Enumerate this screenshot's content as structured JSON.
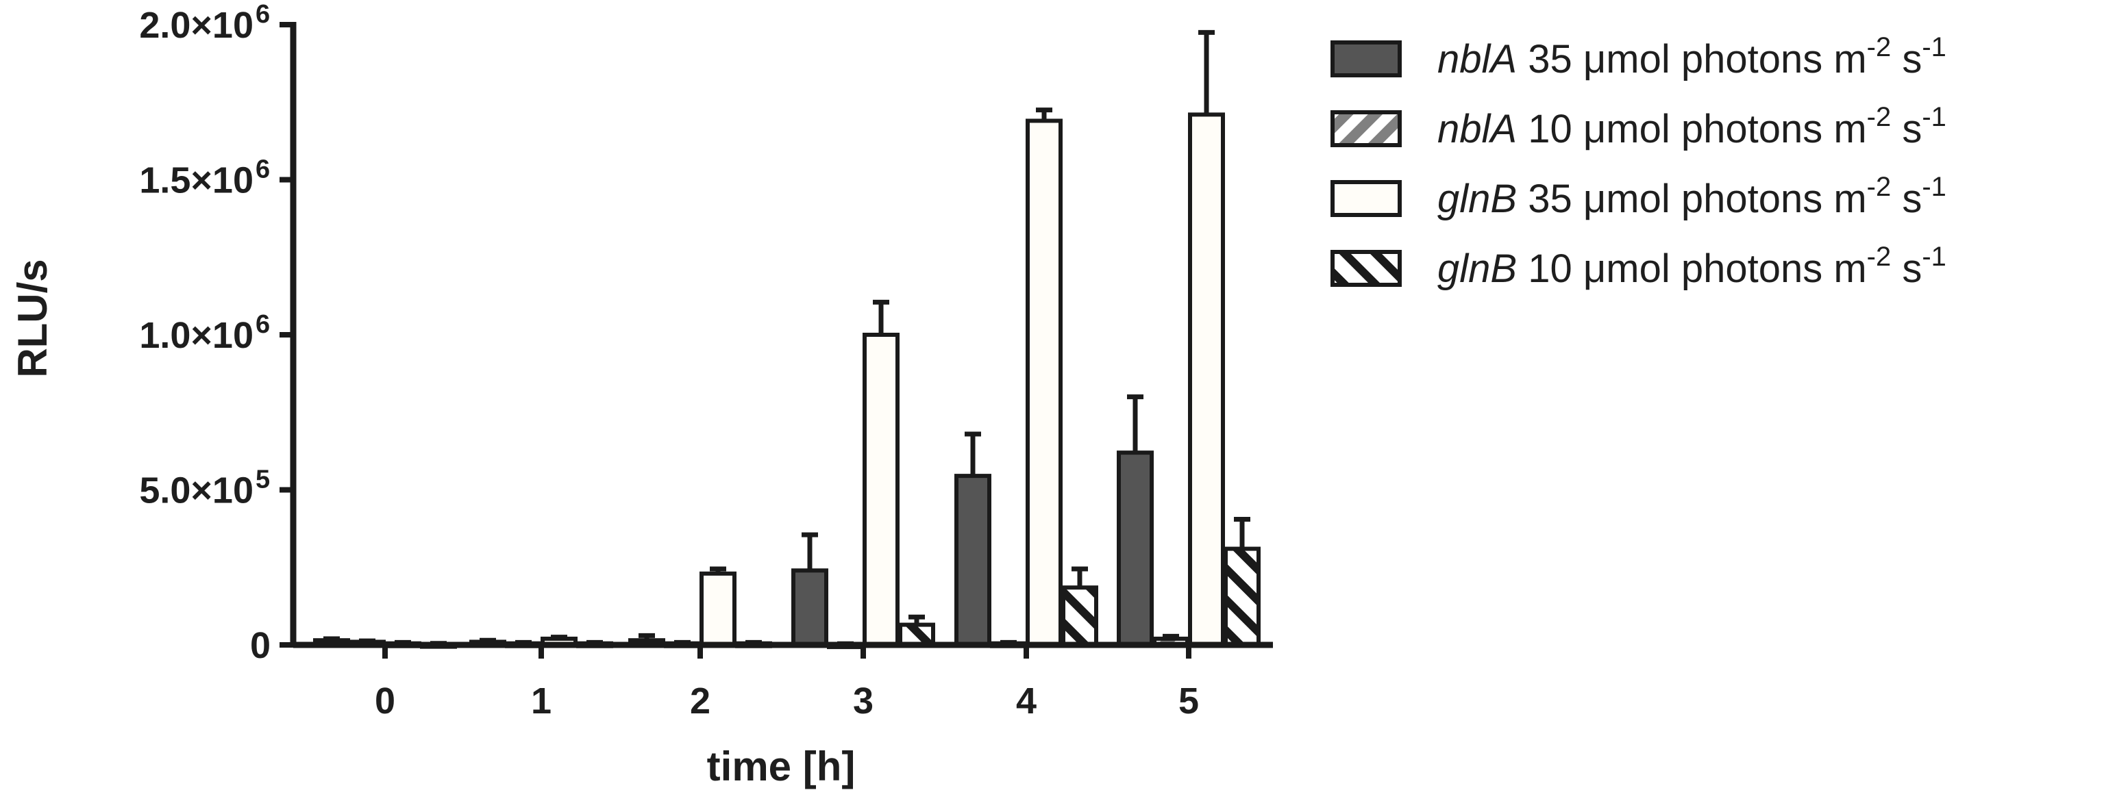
{
  "chart_data": {
    "type": "bar",
    "xlabel": "time [h]",
    "ylabel": "RLU/s",
    "categories": [
      "0",
      "1",
      "2",
      "3",
      "4",
      "5"
    ],
    "ylim": [
      0,
      2000000
    ],
    "yticks": [
      {
        "value": 0,
        "mantissa": "0",
        "exponent": ""
      },
      {
        "value": 500000,
        "mantissa": "5.0×10",
        "exponent": "5"
      },
      {
        "value": 1000000,
        "mantissa": "1.0×10",
        "exponent": "6"
      },
      {
        "value": 1500000,
        "mantissa": "1.5×10",
        "exponent": "6"
      },
      {
        "value": 2000000,
        "mantissa": "2.0×10",
        "exponent": "6"
      }
    ],
    "series": [
      {
        "gene": "nblA",
        "name_rest": " 35 μmol photons m",
        "sup1": "-2",
        "mid": " s",
        "sup2": "-1",
        "style": "solid-dark",
        "values": [
          15000,
          10000,
          15000,
          240000,
          545000,
          620000
        ],
        "errors": [
          5000,
          5000,
          15000,
          115000,
          135000,
          180000
        ]
      },
      {
        "gene": "nblA",
        "name_rest": " 10 μmol photons m",
        "sup1": "-2",
        "mid": " s",
        "sup2": "-1",
        "style": "hatch-gray",
        "values": [
          10000,
          5000,
          5000,
          2000,
          5000,
          20000
        ],
        "errors": [
          3000,
          3000,
          3000,
          2000,
          3000,
          8000
        ]
      },
      {
        "gene": "glnB",
        "name_rest": " 35 μmol photons m",
        "sup1": "-2",
        "mid": " s",
        "sup2": "-1",
        "style": "white",
        "values": [
          5000,
          20000,
          230000,
          1000000,
          1690000,
          1710000
        ],
        "errors": [
          3000,
          5000,
          15000,
          105000,
          35000,
          265000
        ]
      },
      {
        "gene": "glnB",
        "name_rest": " 10 μmol photons m",
        "sup1": "-2",
        "mid": " s",
        "sup2": "-1",
        "style": "hatch-black",
        "values": [
          3000,
          5000,
          5000,
          65000,
          185000,
          310000
        ],
        "errors": [
          2000,
          3000,
          3000,
          25000,
          60000,
          95000
        ]
      }
    ],
    "legend_position": "top-right",
    "grid": false
  },
  "colors": {
    "dark_fill": "#555555",
    "gray_hatch": "#808080",
    "white_fill": "#fffdf8",
    "black": "#1a1a1a"
  }
}
